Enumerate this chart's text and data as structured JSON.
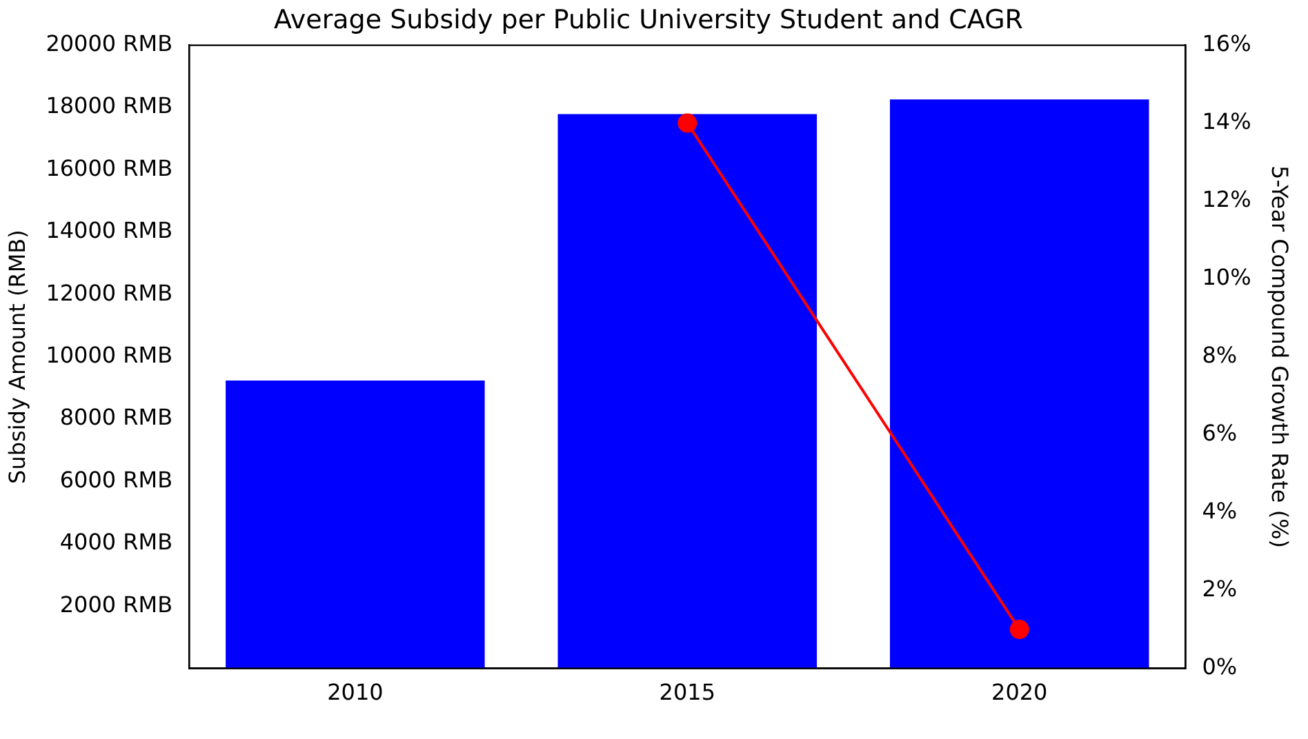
{
  "chart_data": {
    "type": "bar",
    "title": "Average Subsidy per Public University Student and CAGR",
    "categories": [
      "2010",
      "2015",
      "2020"
    ],
    "series": [
      {
        "color": "#0000ff",
        "values": [
          9240,
          17790,
          18260
        ]
      },
      {
        "type": "line",
        "axis": "y2",
        "color": "#ff0000",
        "marker": "circle",
        "line_style": "solid",
        "values": [
          null,
          14,
          1
        ]
      }
    ],
    "ylabel": "Subsidy Amount (RMB)",
    "y2label": "5-Year Compound Growth Rate (%)",
    "ylim": [
      0,
      20000
    ],
    "yticks": [
      {
        "value": 2000,
        "label": "2000 RMB"
      },
      {
        "value": 4000,
        "label": "4000 RMB"
      },
      {
        "value": 6000,
        "label": "6000 RMB"
      },
      {
        "value": 8000,
        "label": "8000 RMB"
      },
      {
        "value": 10000,
        "label": "10000 RMB"
      },
      {
        "value": 12000,
        "label": "12000 RMB"
      },
      {
        "value": 14000,
        "label": "14000 RMB"
      },
      {
        "value": 16000,
        "label": "16000 RMB"
      },
      {
        "value": 18000,
        "label": "18000 RMB"
      },
      {
        "value": 20000,
        "label": "20000 RMB"
      }
    ],
    "y2lim": [
      0,
      16
    ],
    "y2ticks": [
      {
        "value": 0,
        "label": "0%"
      },
      {
        "value": 2,
        "label": "2%"
      },
      {
        "value": 4,
        "label": "4%"
      },
      {
        "value": 6,
        "label": "6%"
      },
      {
        "value": 8,
        "label": "8%"
      },
      {
        "value": 10,
        "label": "10%"
      },
      {
        "value": 12,
        "label": "12%"
      },
      {
        "value": 14,
        "label": "14%"
      },
      {
        "value": 16,
        "label": "16%"
      }
    ],
    "grid": false,
    "legend": false
  }
}
